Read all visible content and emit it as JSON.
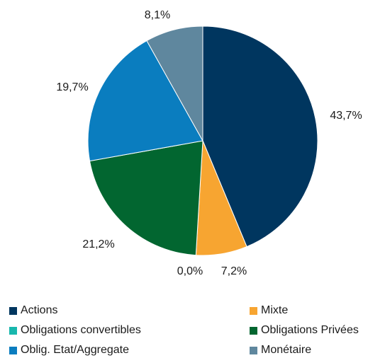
{
  "chart_data": {
    "type": "pie",
    "title": "",
    "slices": [
      {
        "name": "Actions",
        "value": 43.7,
        "label": "43,7%",
        "color": "#00365f"
      },
      {
        "name": "Mixte",
        "value": 7.2,
        "label": "7,2%",
        "color": "#f7a531"
      },
      {
        "name": "Obligations convertibles",
        "value": 0.0,
        "label": "0,0%",
        "color": "#18b7ad"
      },
      {
        "name": "Obligations Privées",
        "value": 21.2,
        "label": "21,2%",
        "color": "#026630"
      },
      {
        "name": "Oblig. Etat/Aggregate",
        "value": 19.7,
        "label": "19,7%",
        "color": "#0a7dbf"
      },
      {
        "name": "Monétaire",
        "value": 8.1,
        "label": "8,1%",
        "color": "#5f879e"
      }
    ],
    "start_angle": "12 o'clock",
    "direction": "clockwise",
    "legend_placement": "bottom"
  }
}
